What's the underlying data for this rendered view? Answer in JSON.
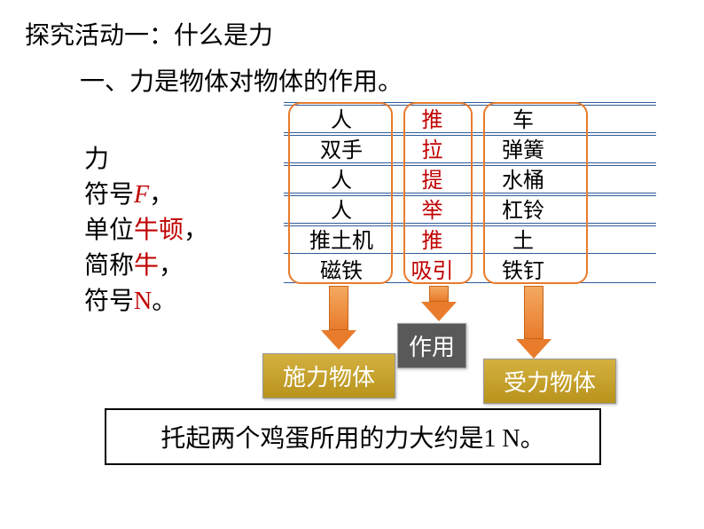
{
  "title": "探究活动一：什么是力",
  "subtitle": "一、力是物体对物体的作用。",
  "leftText": {
    "line1": "力",
    "line2a": "符号",
    "line2b": "F",
    "line2c": "，",
    "line3a": "单位",
    "line3b": "牛顿",
    "line3c": "，",
    "line4a": "简称",
    "line4b": "牛",
    "line4c": "，",
    "line5a": "符号",
    "line5b": "N",
    "line5c": "。"
  },
  "table": {
    "rows": [
      {
        "c1": "人",
        "c2": "推",
        "c3": "车"
      },
      {
        "c1": "双手",
        "c2": "拉",
        "c3": "弹簧"
      },
      {
        "c1": "人",
        "c2": "提",
        "c3": "水桶"
      },
      {
        "c1": "人",
        "c2": "举",
        "c3": "杠铃"
      },
      {
        "c1": "推土机",
        "c2": "推",
        "c3": "土"
      },
      {
        "c1": "磁铁",
        "c2": "吸引",
        "c3": "铁钉"
      }
    ],
    "colColors": {
      "c1": "#000000",
      "c2": "#c00000",
      "c3": "#000000"
    },
    "borderColor": "#e87b2c",
    "lineColor": "#2e5c9a"
  },
  "labels": {
    "source": "施力物体",
    "action": "作用",
    "target": "受力物体"
  },
  "bottom": "托起两个鸡蛋所用的力大约是1 N。",
  "colors": {
    "red": "#c00000",
    "arrowFill": "#e87b2c",
    "goldBox": "#b8941c",
    "grayBox": "#595959"
  }
}
